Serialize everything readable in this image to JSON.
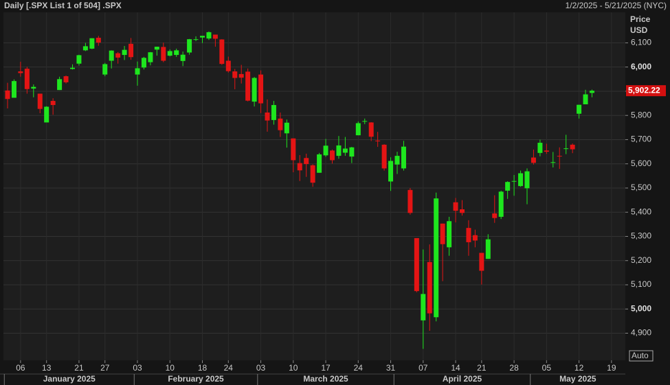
{
  "chart_data": {
    "type": "candlestick",
    "title": "Daily [.SPX List 1 of 504] .SPX",
    "date_range": "1/2/2025 - 5/21/2025 (NYC)",
    "y_label": "Price",
    "y_unit": "USD",
    "scale_button": "Auto",
    "up_color": "#1ee61e",
    "down_color": "#e41414",
    "grid": true,
    "categories": [
      "2025-01-02",
      "2025-01-03",
      "2025-01-06",
      "2025-01-07",
      "2025-01-08",
      "2025-01-10",
      "2025-01-13",
      "2025-01-14",
      "2025-01-15",
      "2025-01-16",
      "2025-01-17",
      "2025-01-21",
      "2025-01-22",
      "2025-01-23",
      "2025-01-24",
      "2025-01-27",
      "2025-01-28",
      "2025-01-29",
      "2025-01-30",
      "2025-01-31",
      "2025-02-03",
      "2025-02-04",
      "2025-02-05",
      "2025-02-06",
      "2025-02-07",
      "2025-02-10",
      "2025-02-11",
      "2025-02-12",
      "2025-02-13",
      "2025-02-14",
      "2025-02-18",
      "2025-02-19",
      "2025-02-20",
      "2025-02-21",
      "2025-02-24",
      "2025-02-25",
      "2025-02-26",
      "2025-02-27",
      "2025-02-28",
      "2025-03-03",
      "2025-03-04",
      "2025-03-05",
      "2025-03-06",
      "2025-03-07",
      "2025-03-10",
      "2025-03-11",
      "2025-03-12",
      "2025-03-13",
      "2025-03-14",
      "2025-03-17",
      "2025-03-18",
      "2025-03-19",
      "2025-03-20",
      "2025-03-21",
      "2025-03-24",
      "2025-03-25",
      "2025-03-26",
      "2025-03-27",
      "2025-03-28",
      "2025-03-31",
      "2025-04-01",
      "2025-04-02",
      "2025-04-03",
      "2025-04-04",
      "2025-04-07",
      "2025-04-08",
      "2025-04-09",
      "2025-04-10",
      "2025-04-11",
      "2025-04-14",
      "2025-04-15",
      "2025-04-16",
      "2025-04-17",
      "2025-04-21",
      "2025-04-22",
      "2025-04-23",
      "2025-04-24",
      "2025-04-25",
      "2025-04-28",
      "2025-04-29",
      "2025-04-30",
      "2025-05-01",
      "2025-05-02",
      "2025-05-05",
      "2025-05-06",
      "2025-05-07",
      "2025-05-08",
      "2025-05-09",
      "2025-05-12",
      "2025-05-13",
      "2025-05-14"
    ],
    "open": [
      5903,
      5873,
      5982,
      5993,
      5911,
      5890,
      5771,
      5860,
      5905,
      5962,
      5992,
      6014,
      6069,
      6076,
      6121,
      5969,
      6026,
      6057,
      6050,
      6096,
      5969,
      5998,
      6020,
      6072,
      6083,
      6047,
      6050,
      6025,
      6060,
      6115,
      6122,
      6118,
      6134,
      6114,
      6026,
      5982,
      5971,
      5981,
      5857,
      5969,
      5812,
      5781,
      5787,
      5726,
      5705,
      5603,
      5624,
      5594,
      5563,
      5635,
      5655,
      5633,
      5646,
      5630,
      5718,
      5776,
      5771,
      5696,
      5679,
      5527,
      5597,
      5581,
      5492,
      5293,
      4953,
      5194,
      4966,
      5353,
      5255,
      5441,
      5412,
      5335,
      5305,
      5232,
      5207,
      5395,
      5381,
      5489,
      5529,
      5508,
      5499,
      5626,
      5645,
      5655,
      5606,
      5633,
      5662,
      5679,
      5807,
      5846,
      5893
    ],
    "high": [
      5935,
      5949,
      6022,
      6001,
      5928,
      5890,
      5838,
      5871,
      5960,
      5965,
      6011,
      6051,
      6100,
      6119,
      6129,
      6017,
      6069,
      6062,
      6087,
      6120,
      6023,
      6042,
      6062,
      6084,
      6101,
      6073,
      6076,
      6064,
      6116,
      6127,
      6129,
      6147,
      6134,
      6115,
      6043,
      5992,
      6009,
      5994,
      5959,
      5986,
      5866,
      5860,
      5812,
      5783,
      5705,
      5636,
      5642,
      5598,
      5645,
      5703,
      5659,
      5715,
      5711,
      5670,
      5775,
      5787,
      5772,
      5732,
      5681,
      5627,
      5650,
      5695,
      5500,
      5293,
      5246,
      5267,
      5481,
      5353,
      5381,
      5459,
      5450,
      5367,
      5328,
      5232,
      5309,
      5470,
      5489,
      5528,
      5554,
      5572,
      5581,
      5659,
      5700,
      5683,
      5649,
      5668,
      5720,
      5684,
      5844,
      5906,
      5907
    ],
    "low": [
      5829,
      5874,
      5960,
      5890,
      5875,
      5809,
      5773,
      5803,
      5905,
      5932,
      5990,
      6006,
      6066,
      6074,
      6088,
      5962,
      5994,
      6014,
      6029,
      6030,
      5923,
      5990,
      6007,
      6047,
      6020,
      6044,
      6042,
      6004,
      6051,
      6107,
      6099,
      6112,
      6084,
      6009,
      5977,
      5908,
      5932,
      5858,
      5837,
      5810,
      5733,
      5762,
      5711,
      5667,
      5565,
      5529,
      5546,
      5505,
      5563,
      5629,
      5601,
      5621,
      5633,
      5603,
      5718,
      5764,
      5694,
      5670,
      5572,
      5488,
      5558,
      5572,
      5390,
      5069,
      4835,
      4910,
      4949,
      5115,
      5220,
      5358,
      5386,
      5220,
      5255,
      5101,
      5207,
      5356,
      5372,
      5455,
      5468,
      5505,
      5433,
      5597,
      5631,
      5641,
      5585,
      5579,
      5640,
      5644,
      5787,
      5846,
      5875
    ],
    "close": [
      5868,
      5942,
      5975,
      5909,
      5918,
      5827,
      5836,
      5843,
      5950,
      5937,
      5997,
      6049,
      6086,
      6119,
      6101,
      6012,
      6068,
      6039,
      6071,
      6041,
      5995,
      6038,
      6061,
      6084,
      6026,
      6066,
      6069,
      6051,
      6115,
      6115,
      6129,
      6144,
      6117,
      6013,
      5983,
      5955,
      5956,
      5861,
      5955,
      5850,
      5779,
      5843,
      5739,
      5770,
      5615,
      5573,
      5599,
      5522,
      5639,
      5675,
      5615,
      5676,
      5663,
      5668,
      5768,
      5777,
      5712,
      5693,
      5581,
      5612,
      5633,
      5671,
      5397,
      5074,
      5062,
      4982,
      5457,
      5268,
      5363,
      5406,
      5397,
      5276,
      5283,
      5158,
      5288,
      5376,
      5485,
      5525,
      5529,
      5561,
      5569,
      5604,
      5687,
      5650,
      5607,
      5631,
      5664,
      5660,
      5844,
      5887,
      5902.22
    ],
    "last_price": {
      "value": 5902.22,
      "label": "5,902.22"
    },
    "ylim": [
      4788,
      6226
    ],
    "yticks": [
      {
        "value": 4900,
        "label": "4,900"
      },
      {
        "value": 5000,
        "label": "5,000"
      },
      {
        "value": 5100,
        "label": "5,100"
      },
      {
        "value": 5200,
        "label": "5,200"
      },
      {
        "value": 5300,
        "label": "5,300"
      },
      {
        "value": 5400,
        "label": "5,400"
      },
      {
        "value": 5500,
        "label": "5,500"
      },
      {
        "value": 5600,
        "label": "5,600"
      },
      {
        "value": 5700,
        "label": "5,700"
      },
      {
        "value": 5800,
        "label": "5,800"
      },
      {
        "value": 5900,
        "label": "5,900"
      },
      {
        "value": 6000,
        "label": "6,000"
      },
      {
        "value": 6100,
        "label": "6,100"
      }
    ],
    "xticks": [
      {
        "value": "2025-01-06",
        "label": "06"
      },
      {
        "value": "2025-01-13",
        "label": "13"
      },
      {
        "value": "2025-01-21",
        "label": "21"
      },
      {
        "value": "2025-01-27",
        "label": "27"
      },
      {
        "value": "2025-02-03",
        "label": "03"
      },
      {
        "value": "2025-02-10",
        "label": "10"
      },
      {
        "value": "2025-02-18",
        "label": "18"
      },
      {
        "value": "2025-02-24",
        "label": "24"
      },
      {
        "value": "2025-03-03",
        "label": "03"
      },
      {
        "value": "2025-03-10",
        "label": "10"
      },
      {
        "value": "2025-03-17",
        "label": "17"
      },
      {
        "value": "2025-03-24",
        "label": "24"
      },
      {
        "value": "2025-03-31",
        "label": "31"
      },
      {
        "value": "2025-04-07",
        "label": "07"
      },
      {
        "value": "2025-04-14",
        "label": "14"
      },
      {
        "value": "2025-04-21",
        "label": "21"
      },
      {
        "value": "2025-04-28",
        "label": "28"
      },
      {
        "value": "2025-05-05",
        "label": "05"
      },
      {
        "value": "2025-05-12",
        "label": "12"
      },
      {
        "value": "2025-05-19",
        "label": "19"
      }
    ],
    "months": [
      {
        "value": "2025-01",
        "label": "January 2025"
      },
      {
        "value": "2025-02",
        "label": "February 2025"
      },
      {
        "value": "2025-03",
        "label": "March 2025"
      },
      {
        "value": "2025-04",
        "label": "April 2025"
      },
      {
        "value": "2025-05",
        "label": "May 2025"
      }
    ]
  }
}
